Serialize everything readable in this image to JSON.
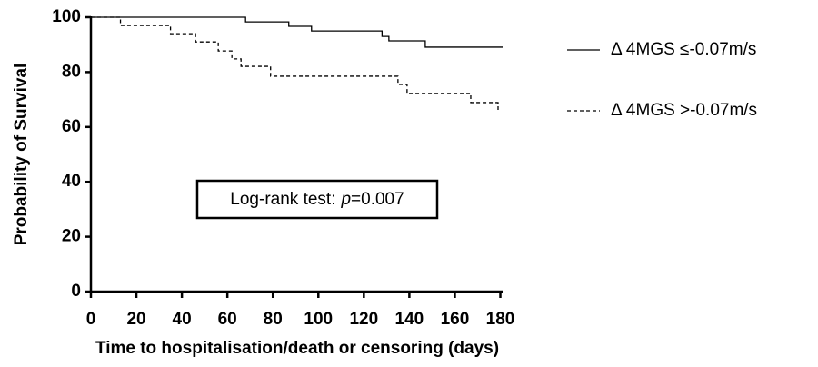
{
  "chart_data": {
    "type": "step",
    "xlabel": "Time to hospitalisation/death or censoring (days)",
    "ylabel": "Probability of Survival",
    "annotation": [
      "Log-rank test:",
      "p",
      "=0.007"
    ],
    "xlim": [
      0,
      181
    ],
    "xticks": [
      0,
      20,
      40,
      60,
      80,
      100,
      120,
      140,
      160,
      180
    ],
    "ylim": [
      0,
      100
    ],
    "yticks": [
      0,
      20,
      40,
      60,
      80,
      100
    ],
    "series": [
      {
        "name": "Δ 4MGS ≤-0.07m/s",
        "color": "#000000",
        "dash": false,
        "x": [
          0,
          68,
          87,
          97,
          128,
          131,
          147,
          181
        ],
        "values": [
          100,
          98.3,
          96.7,
          95.0,
          93.0,
          91.4,
          89.1,
          89.1
        ]
      },
      {
        "name": "Δ 4MGS >-0.07m/s",
        "color": "#000000",
        "dash": true,
        "x": [
          0,
          13,
          35,
          46,
          56,
          62,
          66,
          79,
          135,
          139,
          167,
          179
        ],
        "values": [
          100,
          97.0,
          94.0,
          91.0,
          87.7,
          84.8,
          82.1,
          78.5,
          75.5,
          72.2,
          68.9,
          65.6
        ]
      }
    ]
  }
}
